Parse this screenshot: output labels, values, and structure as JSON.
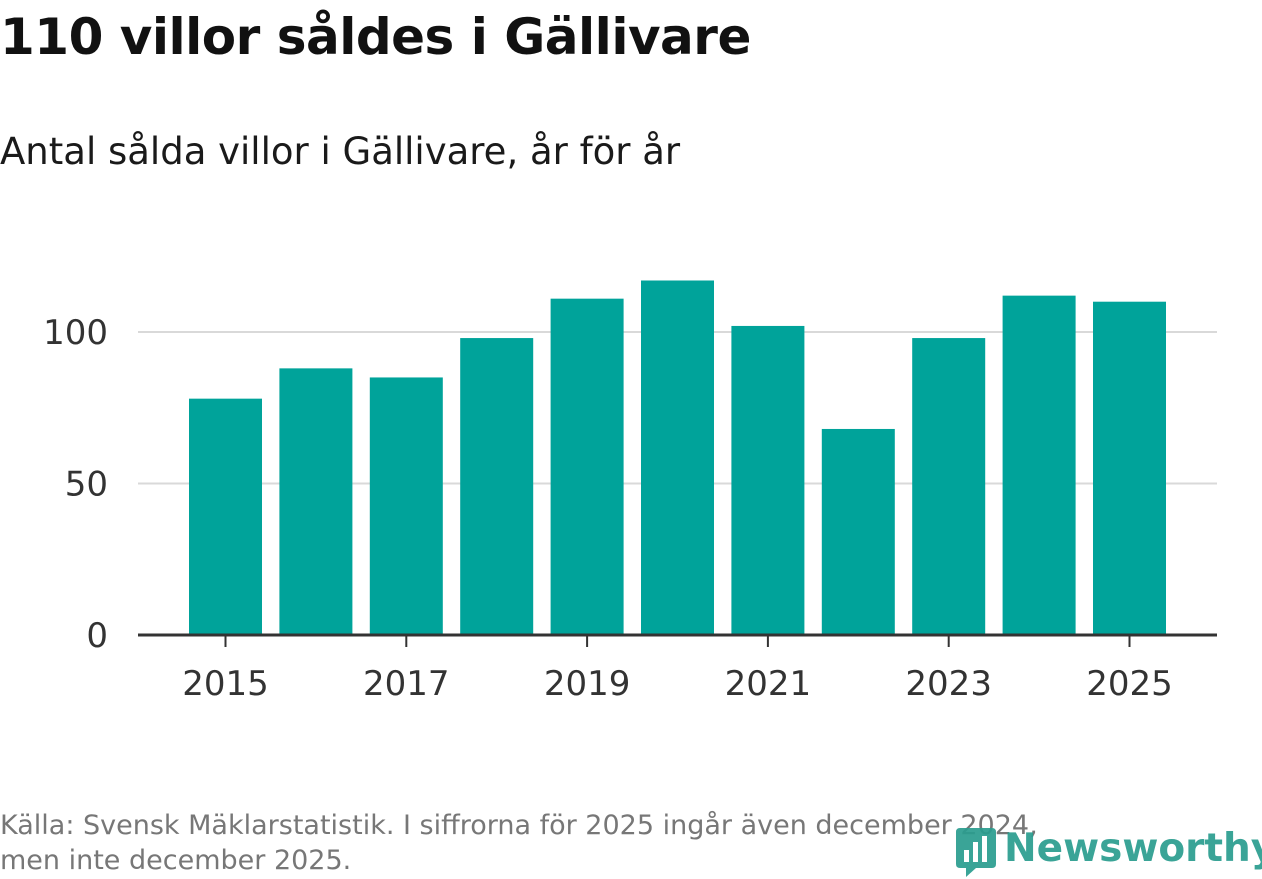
{
  "title": "110 villor såldes i Gällivare",
  "subtitle": "Antal sålda villor i Gällivare, år för år",
  "footer": {
    "source_line1": "Källa: Svensk Mäklarstatistik. I siffrorna för 2025 ingår även december 2024,",
    "source_line2": "men inte december 2025."
  },
  "brand": {
    "name": "Newsworthy",
    "icon": "newsworthy-logo-icon"
  },
  "colors": {
    "bar": "#00a39a",
    "grid": "#d9d9d9",
    "axis": "#333333",
    "brand": "#2a9d8f"
  },
  "chart_data": {
    "type": "bar",
    "title": "110 villor såldes i Gällivare",
    "subtitle": "Antal sålda villor i Gällivare, år för år",
    "xlabel": "",
    "ylabel": "",
    "categories": [
      "2015",
      "2016",
      "2017",
      "2018",
      "2019",
      "2020",
      "2021",
      "2022",
      "2023",
      "2024",
      "2025"
    ],
    "values": [
      78,
      88,
      85,
      98,
      111,
      117,
      102,
      68,
      98,
      112,
      110
    ],
    "x_tick_labels": [
      "2015",
      "2017",
      "2019",
      "2021",
      "2023",
      "2025"
    ],
    "y_ticks": [
      0,
      50,
      100
    ],
    "y_tick_labels": [
      "0",
      "50",
      "100"
    ],
    "ylim": [
      0,
      117
    ],
    "grid": true
  }
}
